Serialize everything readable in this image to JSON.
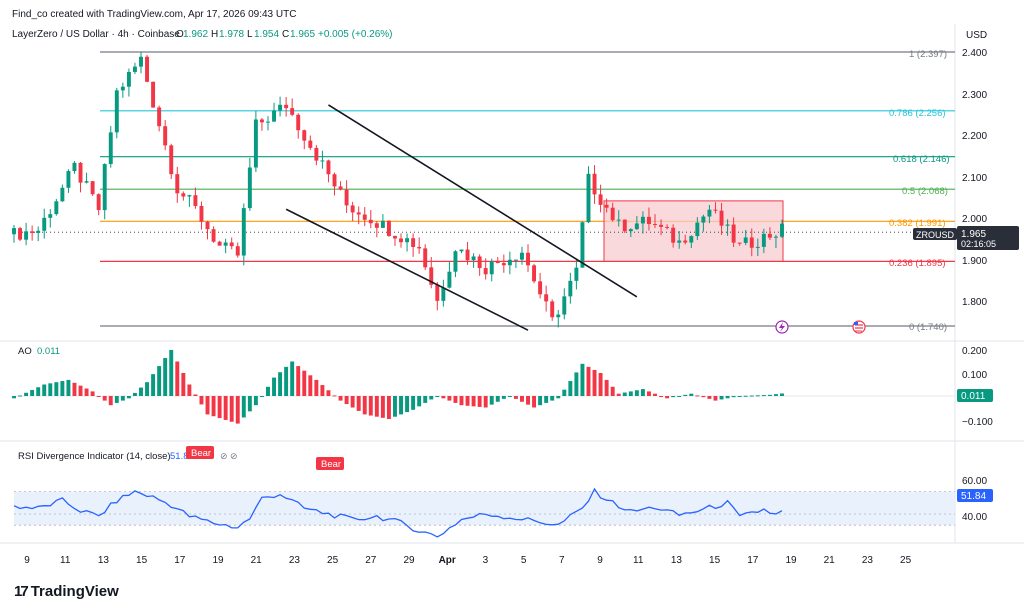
{
  "header": {
    "attribution": "Find_co created with TradingView.com, Apr 17, 2026 09:43 UTC",
    "symbol_title": "LayerZero / US Dollar · 4h · Coinbase",
    "ohlc": [
      {
        "label": "O",
        "value": "1.962"
      },
      {
        "label": "H",
        "value": "1.978"
      },
      {
        "label": "L",
        "value": "1.954"
      },
      {
        "label": "C",
        "value": "1.965"
      }
    ],
    "change": "+0.005 (+0.26%)",
    "currency": "USD"
  },
  "colors": {
    "bull": "#089981",
    "bear": "#f23645",
    "fib_1": "#787b86",
    "fib_0786": "#26c6da",
    "fib_0618": "#089981",
    "fib_05": "#4caf50",
    "fib_0382": "#ff9800",
    "fib_0236": "#f23645",
    "rsi_line": "#2962ff",
    "rsi_band": "#e3eefc",
    "box_fill": "#f7c9cd",
    "box_border": "#f23645"
  },
  "price_axis": {
    "ticks": [
      "2.400",
      "2.300",
      "2.200",
      "2.100",
      "2.000",
      "1.900",
      "1.800"
    ],
    "current_symbol": "ZROUSD",
    "current_price": "1.965",
    "countdown": "02:16:05"
  },
  "fib_levels": [
    {
      "ratio": "1",
      "price": "2.397",
      "label": "1 (2.397)",
      "value": 2.397,
      "color_key": "fib_1"
    },
    {
      "ratio": "0.786",
      "price": "2.256",
      "label": "0.786 (2.256)",
      "value": 2.256,
      "color_key": "fib_0786"
    },
    {
      "ratio": "0.618",
      "price": "2.146",
      "label": "0.618 (2.146)",
      "value": 2.146,
      "color_key": "fib_0618"
    },
    {
      "ratio": "0.5",
      "price": "2.068",
      "label": "0.5 (2.068)",
      "value": 2.068,
      "color_key": "fib_05"
    },
    {
      "ratio": "0.382",
      "price": "1.991",
      "label": "0.382 (1.991)",
      "value": 1.991,
      "color_key": "fib_0382"
    },
    {
      "ratio": "0.236",
      "price": "1.895",
      "label": "0.236 (1.895)",
      "value": 1.895,
      "color_key": "fib_0236"
    },
    {
      "ratio": "0",
      "price": "1.740",
      "label": "0 (1.740)",
      "value": 1.74,
      "color_key": "fib_1"
    }
  ],
  "ao_panel": {
    "title": "AO",
    "value": "0.011",
    "ticks": [
      "0.200",
      "0.100",
      "−0.100"
    ],
    "current": "0.011"
  },
  "rsi_panel": {
    "title": "RSI Divergence Indicator (14, close)",
    "value_partial": "51.84",
    "ticks": [
      "60.00",
      "40.00"
    ],
    "current": "51.84",
    "badges": [
      "Bear",
      "Bear"
    ]
  },
  "time_axis": {
    "labels": [
      "9",
      "11",
      "13",
      "15",
      "17",
      "19",
      "21",
      "23",
      "25",
      "27",
      "29",
      "Apr",
      "3",
      "5",
      "7",
      "9",
      "11",
      "13",
      "15",
      "17",
      "19",
      "21",
      "23",
      "25"
    ]
  },
  "logo": {
    "mark": "17",
    "text": "TradingView"
  },
  "chart_data": {
    "type": "candlestick",
    "symbol": "ZROUSD",
    "timeframe": "4h",
    "price_ylim": [
      1.72,
      2.42
    ],
    "price_path": [
      [
        0,
        1.96
      ],
      [
        4,
        1.97
      ],
      [
        10,
        2.12
      ],
      [
        14,
        2.02
      ],
      [
        17,
        2.3
      ],
      [
        21,
        2.38
      ],
      [
        27,
        2.07
      ],
      [
        30,
        2.02
      ],
      [
        34,
        1.93
      ],
      [
        37,
        1.91
      ],
      [
        40,
        2.22
      ],
      [
        45,
        2.27
      ],
      [
        55,
        2.03
      ],
      [
        60,
        1.99
      ],
      [
        67,
        1.93
      ],
      [
        70,
        1.8
      ],
      [
        73,
        1.93
      ],
      [
        78,
        1.88
      ],
      [
        84,
        1.92
      ],
      [
        89,
        1.75
      ],
      [
        93,
        1.87
      ],
      [
        95,
        2.09
      ],
      [
        100,
        1.98
      ],
      [
        105,
        1.99
      ],
      [
        110,
        1.94
      ],
      [
        115,
        2.02
      ],
      [
        120,
        1.93
      ],
      [
        127,
        1.97
      ]
    ],
    "ao_path": [
      [
        0,
        -0.01
      ],
      [
        5,
        0.05
      ],
      [
        9,
        0.07
      ],
      [
        13,
        0.02
      ],
      [
        16,
        -0.04
      ],
      [
        19,
        -0.01
      ],
      [
        22,
        0.06
      ],
      [
        26,
        0.2
      ],
      [
        29,
        0.05
      ],
      [
        32,
        -0.08
      ],
      [
        37,
        -0.12
      ],
      [
        40,
        -0.04
      ],
      [
        43,
        0.08
      ],
      [
        46,
        0.15
      ],
      [
        50,
        0.07
      ],
      [
        54,
        -0.02
      ],
      [
        58,
        -0.08
      ],
      [
        62,
        -0.1
      ],
      [
        66,
        -0.06
      ],
      [
        70,
        0.0
      ],
      [
        74,
        -0.04
      ],
      [
        78,
        -0.05
      ],
      [
        82,
        0.0
      ],
      [
        86,
        -0.05
      ],
      [
        90,
        -0.01
      ],
      [
        94,
        0.14
      ],
      [
        97,
        0.1
      ],
      [
        100,
        0.01
      ],
      [
        104,
        0.03
      ],
      [
        108,
        -0.01
      ],
      [
        112,
        0.01
      ],
      [
        116,
        -0.02
      ],
      [
        120,
        0.0
      ],
      [
        125,
        0.005
      ],
      [
        127,
        0.011
      ]
    ],
    "rsi_path": [
      [
        0,
        57
      ],
      [
        4,
        55
      ],
      [
        8,
        62
      ],
      [
        11,
        53
      ],
      [
        14,
        48
      ],
      [
        17,
        62
      ],
      [
        20,
        70
      ],
      [
        23,
        65
      ],
      [
        26,
        58
      ],
      [
        29,
        48
      ],
      [
        33,
        42
      ],
      [
        37,
        38
      ],
      [
        39,
        46
      ],
      [
        41,
        64
      ],
      [
        44,
        68
      ],
      [
        48,
        55
      ],
      [
        52,
        50
      ],
      [
        56,
        45
      ],
      [
        60,
        48
      ],
      [
        64,
        42
      ],
      [
        67,
        35
      ],
      [
        70,
        30
      ],
      [
        74,
        45
      ],
      [
        78,
        50
      ],
      [
        82,
        47
      ],
      [
        86,
        44
      ],
      [
        90,
        40
      ],
      [
        94,
        55
      ],
      [
        96,
        70
      ],
      [
        99,
        60
      ],
      [
        102,
        52
      ],
      [
        106,
        56
      ],
      [
        110,
        49
      ],
      [
        114,
        54
      ],
      [
        118,
        60
      ],
      [
        120,
        47
      ],
      [
        124,
        54
      ],
      [
        126,
        49
      ],
      [
        127,
        51.84
      ]
    ],
    "rsi_band": [
      40,
      70
    ],
    "consolidation_box": {
      "price_low": 1.895,
      "price_high": 2.04
    },
    "channel": {
      "upper": [
        [
          52,
          2.27
        ],
        [
          103,
          1.81
        ]
      ],
      "lower": [
        [
          45,
          2.02
        ],
        [
          85,
          1.73
        ]
      ]
    }
  }
}
